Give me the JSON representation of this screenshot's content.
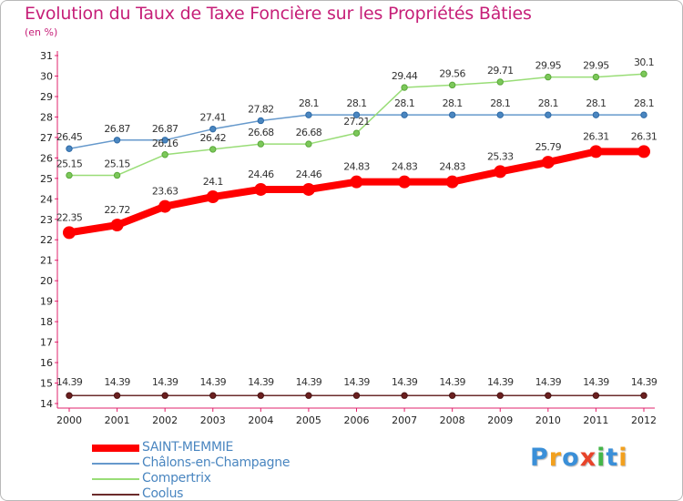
{
  "chart_data": {
    "type": "line",
    "title": "Evolution du Taux de Taxe Foncière sur les Propriétés Bâties",
    "ylabel": "(en %)",
    "xlabel": "",
    "x": [
      "2000",
      "2001",
      "2002",
      "2003",
      "2004",
      "2005",
      "2006",
      "2007",
      "2008",
      "2009",
      "2010",
      "2011",
      "2012"
    ],
    "ylim": [
      14,
      31
    ],
    "yticks": [
      14,
      15,
      16,
      17,
      18,
      19,
      20,
      21,
      22,
      23,
      24,
      25,
      26,
      27,
      28,
      29,
      30,
      31
    ],
    "grid": false,
    "legend_position": "bottom-left",
    "series": [
      {
        "name": "SAINT-MEMMIE",
        "color": "#ff0000",
        "values": [
          22.35,
          22.72,
          23.63,
          24.1,
          24.46,
          24.46,
          24.83,
          24.83,
          24.83,
          25.33,
          25.79,
          26.31,
          26.31
        ],
        "labels": [
          "22.35",
          "22.72",
          "23.63",
          "24.1",
          "24.46",
          "24.46",
          "24.83",
          "24.83",
          "24.83",
          "25.33",
          "25.79",
          "26.31",
          "26.31"
        ]
      },
      {
        "name": "Châlons-en-Champagne",
        "color": "#6699cc",
        "values": [
          26.45,
          26.87,
          26.87,
          27.41,
          27.82,
          28.1,
          28.1,
          28.1,
          28.1,
          28.1,
          28.1,
          28.1,
          28.1
        ],
        "labels": [
          "26.45",
          "26.87",
          "26.87",
          "27.41",
          "27.82",
          "28.1",
          "28.1",
          "28.1",
          "28.1",
          "28.1",
          "28.1",
          "28.1",
          "28.1"
        ]
      },
      {
        "name": "Compertrix",
        "color": "#99dd77",
        "values": [
          25.15,
          25.15,
          26.16,
          26.42,
          26.68,
          26.68,
          27.21,
          29.44,
          29.56,
          29.71,
          29.95,
          29.95,
          30.1
        ],
        "labels": [
          "25.15",
          "25.15",
          "26.16",
          "26.42",
          "26.68",
          "26.68",
          "27.21",
          "29.44",
          "29.56",
          "29.71",
          "29.95",
          "29.95",
          "30.1"
        ]
      },
      {
        "name": "Coolus",
        "color": "#6b2b2b",
        "values": [
          14.39,
          14.39,
          14.39,
          14.39,
          14.39,
          14.39,
          14.39,
          14.39,
          14.39,
          14.39,
          14.39,
          14.39,
          14.39
        ],
        "labels": [
          "14.39",
          "14.39",
          "14.39",
          "14.39",
          "14.39",
          "14.39",
          "14.39",
          "14.39",
          "14.39",
          "14.39",
          "14.39",
          "14.39",
          "14.39"
        ]
      }
    ]
  },
  "logo": {
    "text": "Proxiti",
    "letters": [
      "P",
      "r",
      "o",
      "x",
      "i",
      "t",
      "i"
    ],
    "colors": [
      "#3a8fd8",
      "#f2a01e",
      "#3a8fd8",
      "#e8442a",
      "#44b649",
      "#3a8fd8",
      "#f2a01e"
    ]
  }
}
